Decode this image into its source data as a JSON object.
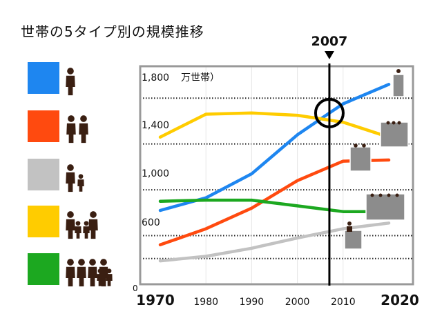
{
  "title": "世帯の5タイプ別の規模推移",
  "colors": {
    "single": "#1e86f0",
    "couple": "#ff4a0f",
    "single_parent": "#c2c2c2",
    "couple_children": "#ffcc00",
    "other": "#1ca820",
    "frame": "#999999",
    "marker": "#000000"
  },
  "legend": [
    {
      "series": "single",
      "color": "#1e86f0",
      "icon": "one-person-icon"
    },
    {
      "series": "couple",
      "color": "#ff4a0f",
      "icon": "two-people-icon"
    },
    {
      "series": "single_parent",
      "color": "#c2c2c2",
      "icon": "parent-and-child-icon"
    },
    {
      "series": "couple_children",
      "color": "#ffcc00",
      "icon": "family-with-children-icon"
    },
    {
      "series": "other",
      "color": "#1ca820",
      "icon": "extended-family-icon"
    }
  ],
  "chart_data": {
    "type": "line",
    "x": [
      1970,
      1980,
      1990,
      2000,
      2010,
      2020
    ],
    "x_tick_labels": [
      "1970",
      "1980",
      "1990",
      "2000",
      "2010",
      "2020"
    ],
    "y_tick_labels": [
      "1,800",
      "1,400",
      "1,000",
      "600",
      "0"
    ],
    "y_ticks": [
      1800,
      1400,
      1000,
      600,
      0
    ],
    "ylabel_unit": "万世帯）",
    "ylim": [
      0,
      1800
    ],
    "xlim": [
      1970,
      2020
    ],
    "grid": true,
    "series": [
      {
        "key": "single",
        "color": "#1e86f0",
        "x": [
          1970,
          1980,
          1990,
          2000,
          2007,
          2010,
          2020
        ],
        "values": [
          620,
          730,
          940,
          1280,
          1470,
          1550,
          1720
        ]
      },
      {
        "key": "couple",
        "color": "#ff4a0f",
        "x": [
          1970,
          1980,
          1990,
          2000,
          2010,
          2020
        ],
        "values": [
          320,
          460,
          640,
          880,
          1050,
          1060
        ]
      },
      {
        "key": "single_parent",
        "color": "#c2c2c2",
        "x": [
          1970,
          1980,
          1990,
          2000,
          2010,
          2020
        ],
        "values": [
          180,
          220,
          290,
          380,
          460,
          510
        ]
      },
      {
        "key": "couple_children",
        "color": "#ffcc00",
        "x": [
          1970,
          1980,
          1990,
          2000,
          2010,
          2020
        ],
        "values": [
          1260,
          1460,
          1470,
          1450,
          1390,
          1260
        ]
      },
      {
        "key": "other",
        "color": "#1ca820",
        "x": [
          1970,
          1980,
          1990,
          2000,
          2010,
          2020
        ],
        "values": [
          700,
          710,
          710,
          660,
          610,
          610
        ]
      }
    ],
    "marker": {
      "x": 2007,
      "label": "2007"
    }
  }
}
